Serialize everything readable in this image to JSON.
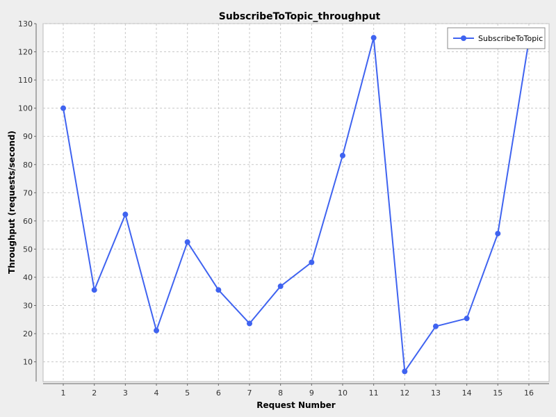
{
  "chart_data": {
    "type": "line",
    "title": "SubscribeToTopic_throughput",
    "xlabel": "Request Number",
    "ylabel": "Throughput (requests/second)",
    "x": [
      1,
      2,
      3,
      4,
      5,
      6,
      7,
      8,
      9,
      10,
      11,
      12,
      13,
      14,
      15,
      16
    ],
    "xticks": [
      "1",
      "2",
      "3",
      "4",
      "5",
      "6",
      "7",
      "8",
      "9",
      "10",
      "11",
      "12",
      "13",
      "14",
      "15",
      "16"
    ],
    "xlim": [
      0.35,
      16.65
    ],
    "ylim": [
      3,
      130
    ],
    "yticks": [
      10,
      20,
      30,
      40,
      50,
      60,
      70,
      80,
      90,
      100,
      110,
      120,
      130
    ],
    "grid": true,
    "legend_position": "top-right",
    "series": [
      {
        "name": "SubscribeToTopic",
        "color": "#3f63f0",
        "values": [
          100,
          35.5,
          62.3,
          21.1,
          52.5,
          35.5,
          23.6,
          36.8,
          45.3,
          83.2,
          125,
          6.6,
          22.6,
          25.4,
          55.5,
          124
        ]
      }
    ]
  }
}
